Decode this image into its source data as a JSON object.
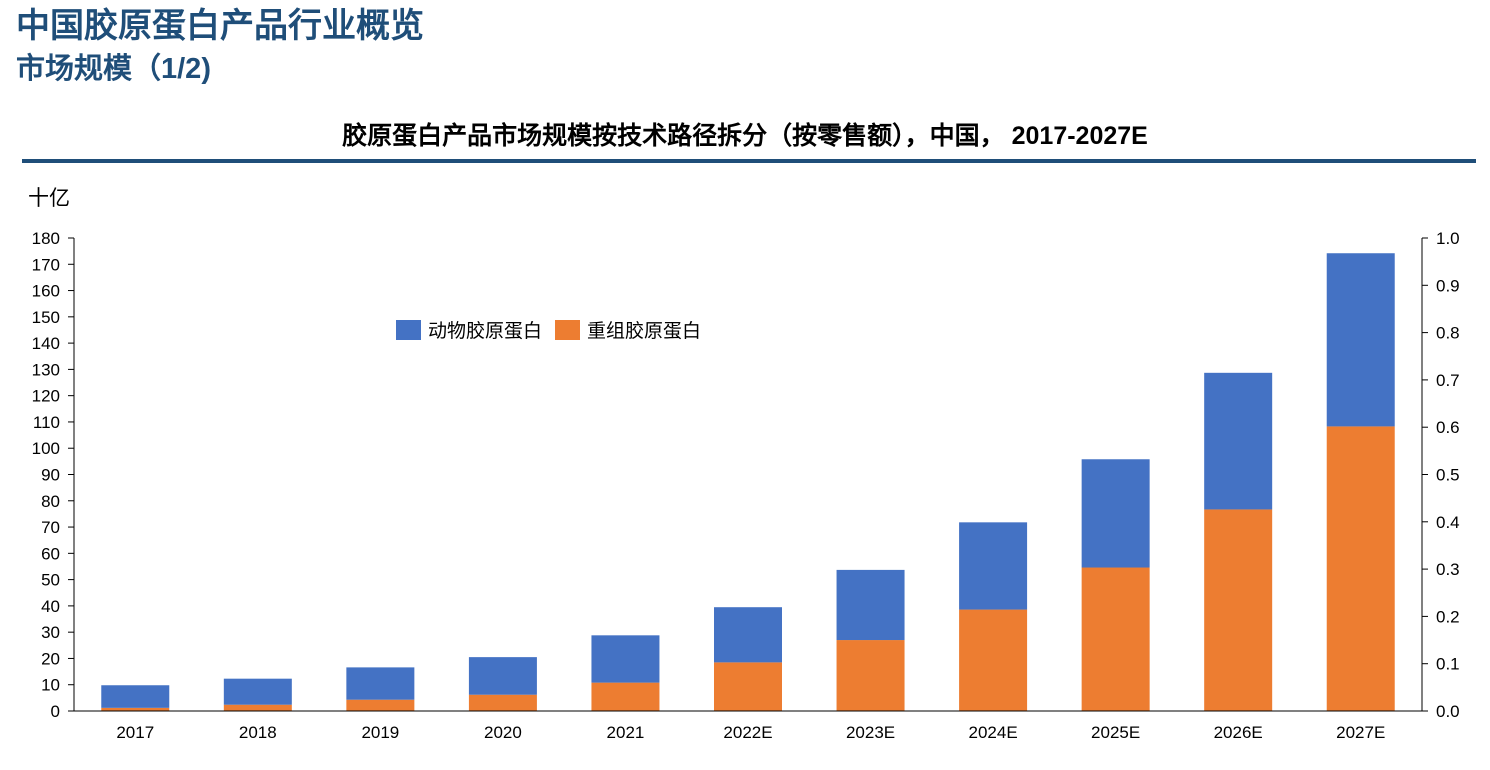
{
  "header": {
    "title": "中国胶原蛋白产品行业概览",
    "subtitle": "市场规模（1/2)"
  },
  "colors": {
    "heading": "#1f4e79",
    "animal": "#4472c4",
    "recombinant": "#ed7d31"
  },
  "chart_data": {
    "type": "bar",
    "stacked": true,
    "title": "胶原蛋白产品市场规模按技术路径拆分（按零售额），中国， 2017-2027E",
    "ylabel": "十亿",
    "ylim": [
      0,
      180
    ],
    "yticks": [
      "0",
      "10",
      "20",
      "30",
      "40",
      "50",
      "60",
      "70",
      "80",
      "90",
      "100",
      "110",
      "120",
      "130",
      "140",
      "150",
      "160",
      "170",
      "180"
    ],
    "y2lim": [
      0,
      1.0
    ],
    "y2ticks": [
      "0.0",
      "0.1",
      "0.2",
      "0.3",
      "0.4",
      "0.5",
      "0.6",
      "0.7",
      "0.8",
      "0.9",
      "1.0"
    ],
    "grid": false,
    "legend_position": "top-left",
    "categories": [
      "2017",
      "2018",
      "2019",
      "2020",
      "2021",
      "2022E",
      "2023E",
      "2024E",
      "2025E",
      "2026E",
      "2027E"
    ],
    "series": [
      {
        "name": "重组胶原蛋白",
        "color": "#ed7d31",
        "values": [
          1.2,
          2.4,
          4.3,
          6.2,
          10.8,
          18.5,
          27.0,
          38.6,
          54.6,
          76.7,
          108.3
        ]
      },
      {
        "name": "动物胶原蛋白",
        "color": "#4472c4",
        "values": [
          8.6,
          9.9,
          12.3,
          14.3,
          18.0,
          21.0,
          26.7,
          33.2,
          41.2,
          52.0,
          65.9
        ]
      }
    ],
    "legend_order": [
      "动物胶原蛋白",
      "重组胶原蛋白"
    ]
  }
}
